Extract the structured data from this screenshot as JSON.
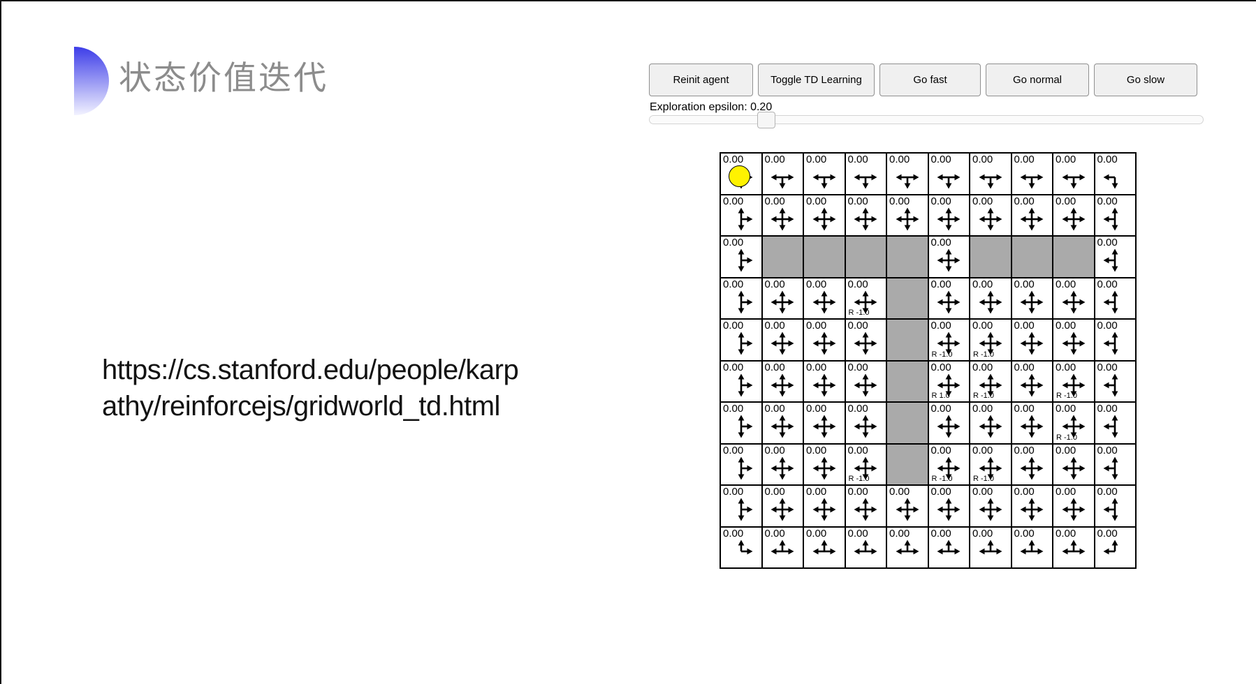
{
  "slide": {
    "title": "状态价值迭代",
    "title_color": "#8c8c8c",
    "accent_color_top": "#3d3de8",
    "accent_color_bottom": "#f2f2ff",
    "url_line1": "https://cs.stanford.edu/people/karp",
    "url_line2": "athy/reinforcejs/gridworld_td.html"
  },
  "demo": {
    "toolbar": {
      "buttons": [
        {
          "label": "Reinit agent"
        },
        {
          "label": "Toggle TD Learning"
        },
        {
          "label": "Go fast"
        },
        {
          "label": "Go normal"
        },
        {
          "label": "Go slow"
        }
      ]
    },
    "epsilon": {
      "label": "Exploration epsilon: 0.20",
      "value": 0.2,
      "min": 0,
      "max": 1
    },
    "grid": {
      "rows": 10,
      "cols": 10,
      "cell_value": "0.00",
      "wall_color": "#aaaaaa",
      "agent": {
        "row": 0,
        "col": 0,
        "color": "#fff200"
      },
      "walls": [
        [
          2,
          1
        ],
        [
          2,
          2
        ],
        [
          2,
          3
        ],
        [
          2,
          4
        ],
        [
          2,
          6
        ],
        [
          2,
          7
        ],
        [
          2,
          8
        ],
        [
          3,
          4
        ],
        [
          4,
          4
        ],
        [
          5,
          4
        ],
        [
          6,
          4
        ],
        [
          7,
          4
        ]
      ],
      "rewards": [
        {
          "row": 3,
          "col": 3,
          "label": "R -1.0"
        },
        {
          "row": 4,
          "col": 5,
          "label": "R -1.0"
        },
        {
          "row": 4,
          "col": 6,
          "label": "R -1.0"
        },
        {
          "row": 5,
          "col": 5,
          "label": "R 1.0"
        },
        {
          "row": 5,
          "col": 6,
          "label": "R -1.0"
        },
        {
          "row": 5,
          "col": 8,
          "label": "R -1.0"
        },
        {
          "row": 6,
          "col": 8,
          "label": "R -1.0"
        },
        {
          "row": 7,
          "col": 3,
          "label": "R -1.0"
        },
        {
          "row": 7,
          "col": 5,
          "label": "R -1.0"
        },
        {
          "row": 7,
          "col": 6,
          "label": "R -1.0"
        }
      ]
    }
  }
}
